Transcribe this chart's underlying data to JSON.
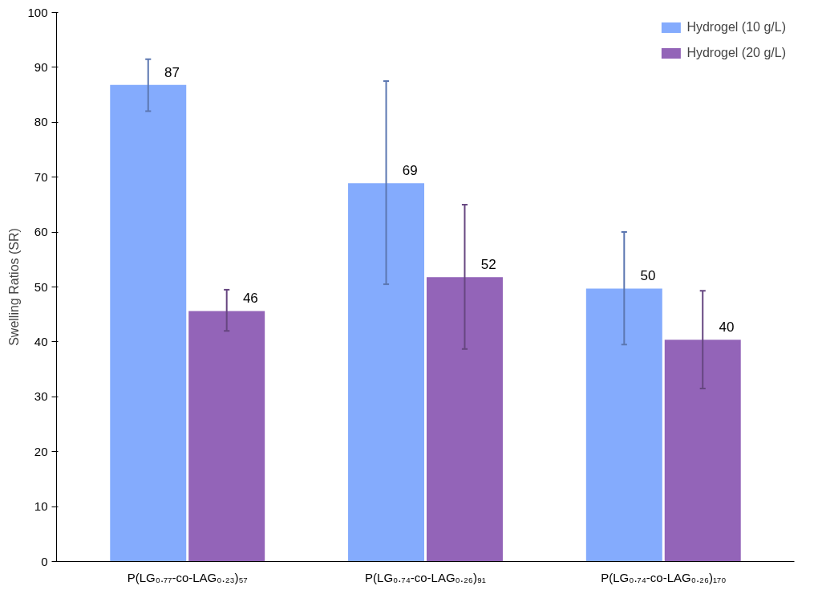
{
  "chart_data": {
    "type": "bar",
    "ylabel": "Swelling Ratios (SR)",
    "categories": [
      "P(LG₀.₇₇-co-LAG₀.₂₃)₅₇",
      "P(LG₀.₇₄-co-LAG₀.₂₆)₉₁",
      "P(LG₀.₇₄-co-LAG₀.₂₆)₁₇₀"
    ],
    "series": [
      {
        "name": "Hydrogel (10 g/L)",
        "color": "#84abfd",
        "values": [
          86.8,
          68.9,
          49.7
        ],
        "errors": [
          [
            82,
            91.5
          ],
          [
            50.5,
            87.5
          ],
          [
            39.5,
            60
          ]
        ],
        "value_labels": [
          "87",
          "69",
          "50"
        ]
      },
      {
        "name": "Hydrogel (20 g/L)",
        "color": "#9364b8",
        "values": [
          45.6,
          51.8,
          40.4
        ],
        "errors": [
          [
            42,
            49.5
          ],
          [
            38.7,
            65
          ],
          [
            31.5,
            49.3
          ]
        ],
        "value_labels": [
          "46",
          "52",
          "40"
        ]
      }
    ],
    "ylim": [
      0,
      100
    ],
    "yticks": [
      0,
      10,
      20,
      30,
      40,
      50,
      60,
      70,
      80,
      90,
      100
    ],
    "grid": false,
    "legend": "top right"
  }
}
